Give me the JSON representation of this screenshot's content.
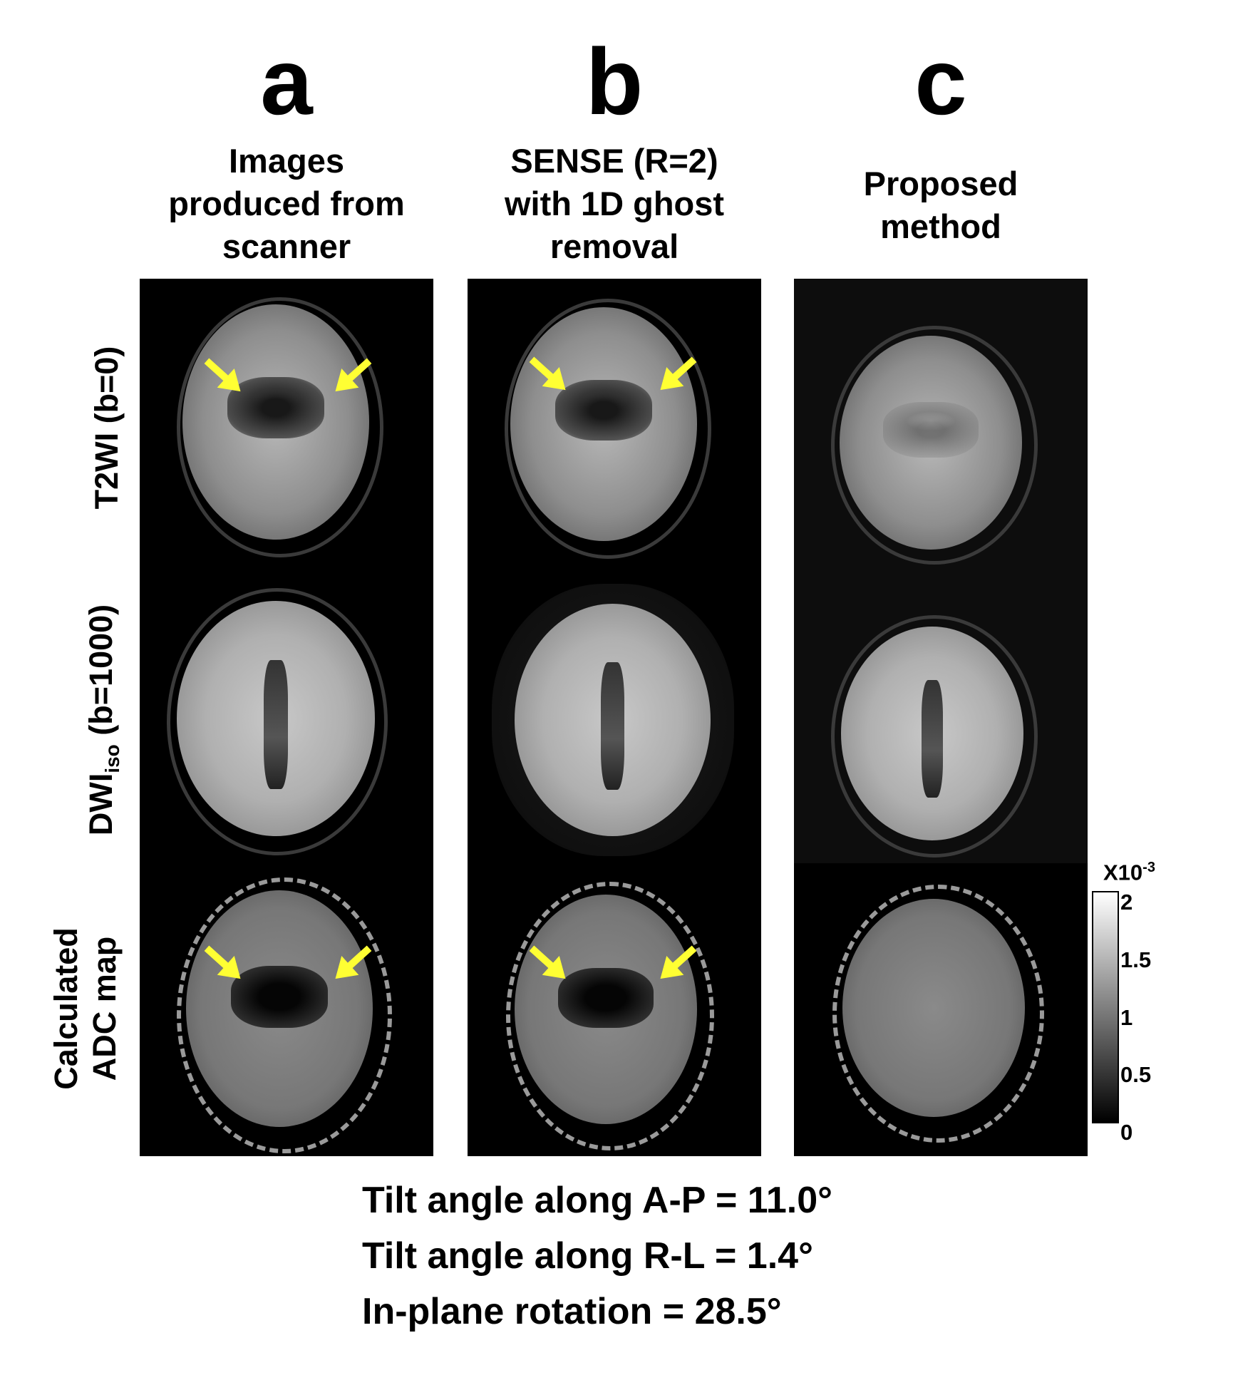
{
  "columns": [
    {
      "letter": "a",
      "title": "Images\nproduced from\nscanner"
    },
    {
      "letter": "b",
      "title": "SENSE (R=2)\nwith 1D ghost\nremoval"
    },
    {
      "letter": "c",
      "title": "Proposed\nmethod"
    }
  ],
  "rows": [
    {
      "label": "T2WI (b=0)"
    },
    {
      "label_main": "DWI",
      "label_sub": "iso",
      "label_rest": " (b=1000)"
    },
    {
      "label_line1": "Calculated",
      "label_line2": "ADC map"
    }
  ],
  "colorbar": {
    "scale_base": "X10",
    "scale_exp": "-3",
    "ticks": [
      "2",
      "1.5",
      "1",
      "0.5",
      "0"
    ],
    "colors": {
      "top": "#ffffff",
      "bottom": "#000000"
    }
  },
  "annotations": {
    "arrow_color": "#ffff33",
    "arrow_icon": "arrow-icon"
  },
  "footer": [
    "Tilt angle along A-P = 11.0°",
    "Tilt angle along R-L = 1.4°",
    "In-plane rotation = 28.5°"
  ]
}
